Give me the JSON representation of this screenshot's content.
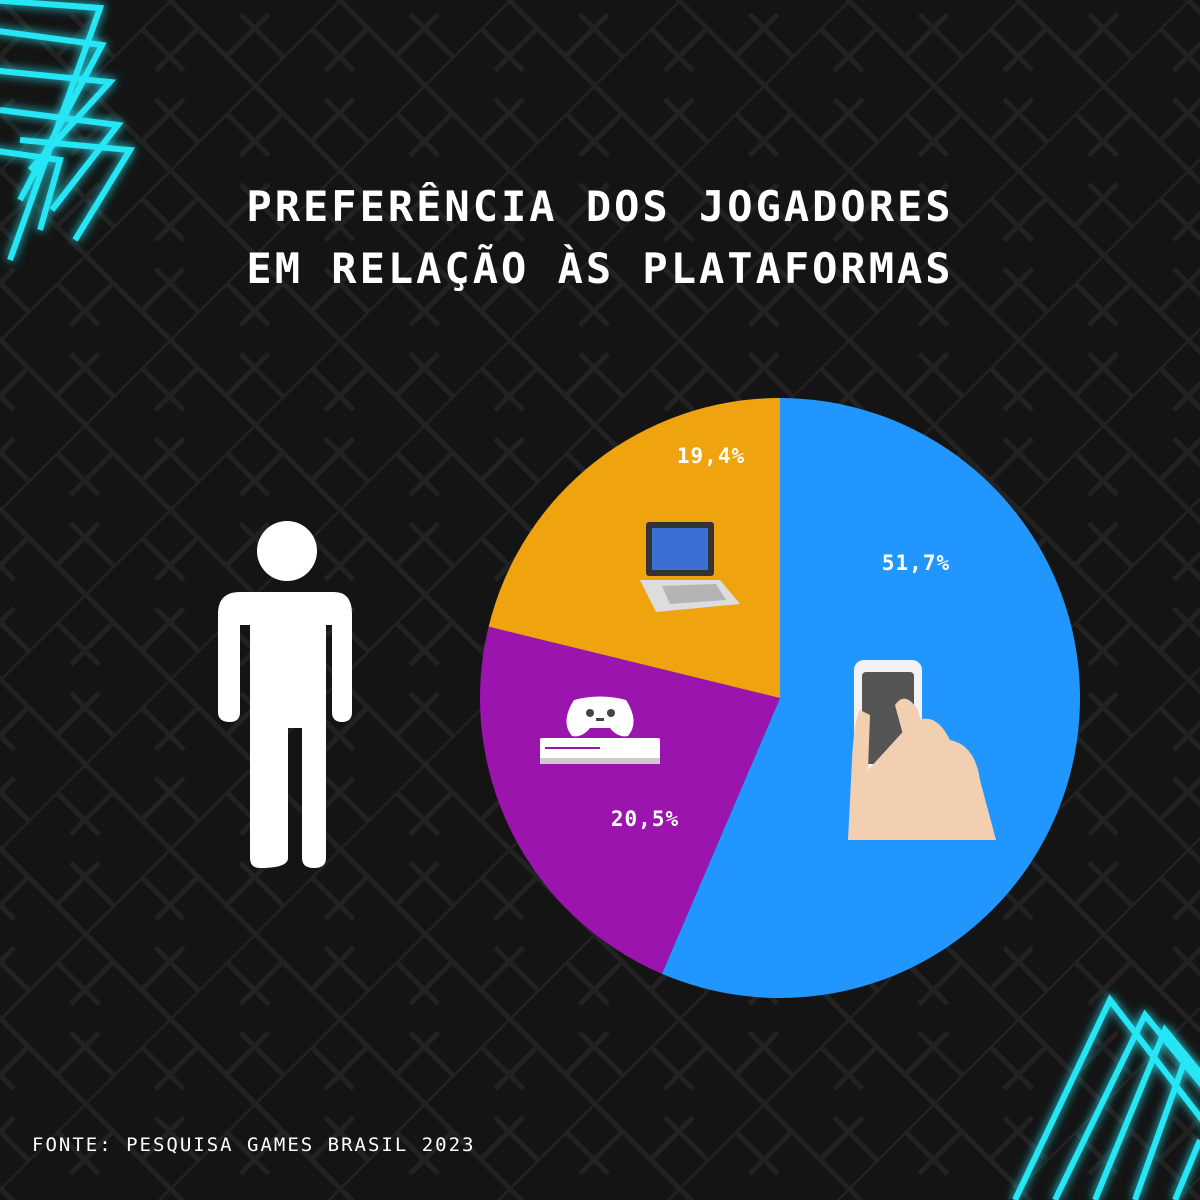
{
  "title": {
    "line1": "PREFERÊNCIA DOS JOGADORES",
    "line2": "EM RELAÇÃO ÀS PLATAFORMAS"
  },
  "source": "FONTE: PESQUISA GAMES BRASIL 2023",
  "colors": {
    "background": "#141414",
    "neon": "#27e6f5",
    "mobile": "#2196FF",
    "console": "#9B14AE",
    "computer": "#EFA40F",
    "person": "#ffffff"
  },
  "icons": {
    "person": "person-icon",
    "mobile": "smartphone-hand-icon",
    "console": "game-console-icon",
    "computer": "laptop-icon"
  },
  "chart_data": {
    "type": "pie",
    "title": "PREFERÊNCIA DOS JOGADORES EM RELAÇÃO ÀS PLATAFORMAS",
    "start": "top",
    "direction": "clockwise",
    "slices": [
      {
        "value": 51.7,
        "label": "51,7%",
        "color": "#2196FF",
        "icon": "smartphone-hand-icon"
      },
      {
        "value": 20.5,
        "label": "20,5%",
        "color": "#9B14AE",
        "icon": "game-console-icon"
      },
      {
        "value": 19.4,
        "label": "19,4%",
        "color": "#EFA40F",
        "icon": "laptop-icon"
      }
    ]
  }
}
